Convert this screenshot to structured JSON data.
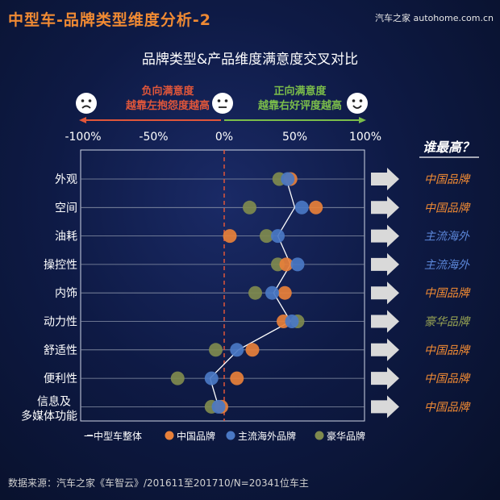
{
  "header": {
    "title": "中型车-品牌类型维度分析-2",
    "watermark": "汽车之家 autohome.com.cn",
    "subtitle": "品牌类型&产品维度满意度交叉对比"
  },
  "scale_labels": {
    "negative_line1": "负向满意度",
    "negative_line2": "越靠左抱怨度越高",
    "positive_line1": "正向满意度",
    "positive_line2": "越靠右好评度越高"
  },
  "colors": {
    "china": "#e8803a",
    "mainstream": "#4a78c4",
    "luxury": "#7f8a4e",
    "overall_line": "#ffffff",
    "neg_arrow": "#e0563a",
    "pos_arrow": "#7bbd4a",
    "zero_line": "#e0563a",
    "winner_china": "#f08a33",
    "winner_mainstream": "#5b86d8",
    "winner_luxury": "#97a353"
  },
  "source_text": "数据来源：汽车之家《车智云》/201611至201710/N=20341位车主",
  "chart_data": {
    "type": "scatter",
    "xlim": [
      -100,
      100
    ],
    "x_ticks": [
      "-100%",
      "-50%",
      "0%",
      "50%",
      "100%"
    ],
    "x_tick_values": [
      -100,
      -50,
      0,
      50,
      100
    ],
    "categories": [
      "外观",
      "空间",
      "油耗",
      "操控性",
      "内饰",
      "动力性",
      "舒适性",
      "便利性",
      "信息及\n多媒体功能"
    ],
    "series": [
      {
        "name": "一中型车整体",
        "style": "line",
        "values": [
          44,
          50,
          38,
          47,
          35,
          47,
          10,
          -10,
          -4
        ]
      },
      {
        "name": "中国品牌",
        "style": "dot",
        "values": [
          47,
          65,
          4,
          44,
          43,
          42,
          20,
          9,
          -2
        ]
      },
      {
        "name": "主流海外品牌",
        "style": "dot",
        "values": [
          45,
          55,
          38,
          52,
          34,
          48,
          9,
          -9,
          -4
        ]
      },
      {
        "name": "豪华品牌",
        "style": "dot",
        "values": [
          39,
          18,
          30,
          38,
          22,
          52,
          -6,
          -33,
          -9
        ]
      }
    ],
    "winner_header": "谁最高？",
    "winners": [
      "中国品牌",
      "中国品牌",
      "主流海外",
      "主流海外",
      "中国品牌",
      "豪华品牌",
      "中国品牌",
      "中国品牌",
      "中国品牌"
    ],
    "winner_types": [
      "china",
      "china",
      "mainstream",
      "mainstream",
      "china",
      "luxury",
      "china",
      "china",
      "china"
    ]
  }
}
